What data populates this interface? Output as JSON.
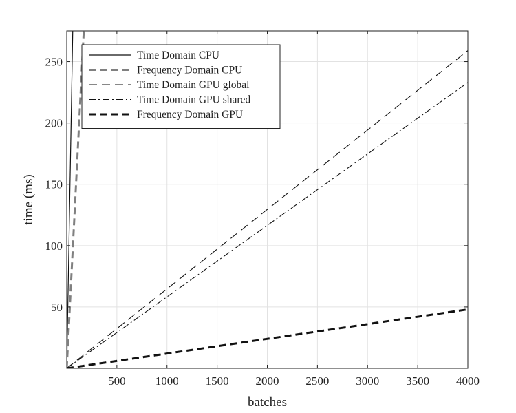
{
  "chart_data": {
    "type": "line",
    "title": "",
    "xlabel": "batches",
    "ylabel": "time (ms)",
    "xlim": [
      0,
      4000
    ],
    "ylim": [
      0,
      275
    ],
    "xticks": [
      500,
      1000,
      1500,
      2000,
      2500,
      3000,
      3500,
      4000
    ],
    "yticks": [
      50,
      100,
      150,
      200,
      250
    ],
    "grid": true,
    "legend_position": "top-left",
    "series": [
      {
        "name": "Time Domain CPU",
        "color": "#111111",
        "style": "solid",
        "x": [
          0,
          60
        ],
        "y": [
          0,
          275
        ]
      },
      {
        "name": "Frequency Domain  CPU",
        "color": "#808080",
        "style": "dashed-thick",
        "x": [
          0,
          170
        ],
        "y": [
          0,
          275
        ]
      },
      {
        "name": "Time Domain GPU global",
        "color": "#111111",
        "style": "dashed",
        "x": [
          0,
          4000
        ],
        "y": [
          0,
          259
        ]
      },
      {
        "name": "Time Domain GPU shared",
        "color": "#111111",
        "style": "dashdot",
        "x": [
          0,
          4000
        ],
        "y": [
          0,
          233
        ]
      },
      {
        "name": "Frequency Domain  GPU",
        "color": "#111111",
        "style": "dashed-thick-black",
        "x": [
          0,
          4000
        ],
        "y": [
          0,
          48
        ]
      }
    ]
  }
}
